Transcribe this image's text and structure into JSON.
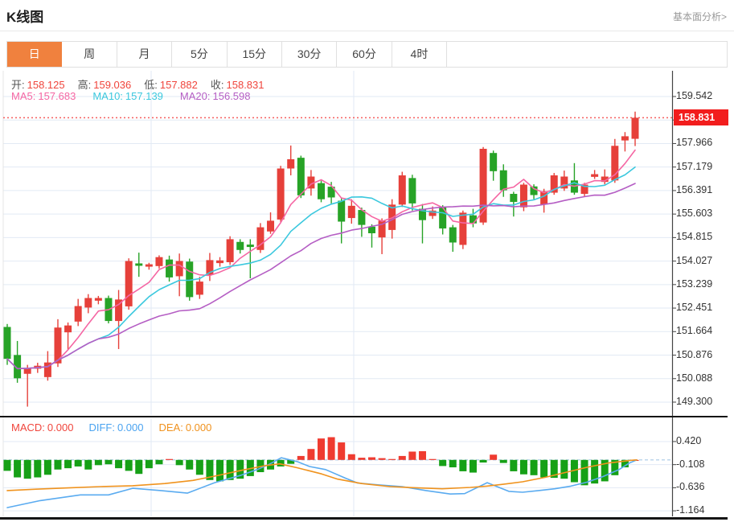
{
  "header": {
    "title": "K线图",
    "link": "基本面分析>"
  },
  "tabs": {
    "items": [
      "日",
      "周",
      "月",
      "5分",
      "15分",
      "30分",
      "60分",
      "4时"
    ],
    "active_index": 0
  },
  "ohlc": {
    "open_label": "开:",
    "open": "158.125",
    "high_label": "高:",
    "high": "159.036",
    "low_label": "低:",
    "low": "157.882",
    "close_label": "收:",
    "close": "158.831"
  },
  "ma": {
    "ma5_label": "MA5:",
    "ma5": "157.683",
    "ma10_label": "MA10:",
    "ma10": "157.139",
    "ma20_label": "MA20:",
    "ma20": "156.598"
  },
  "macd_header": {
    "macd_label": "MACD:",
    "macd": "0.000",
    "diff_label": "DIFF:",
    "diff": "0.000",
    "dea_label": "DEA:",
    "dea": "0.000"
  },
  "price_axis": {
    "current_price": "158.831"
  },
  "colors": {
    "up": "#e6403a",
    "down": "#27a327",
    "ma5": "#f566a3",
    "ma10": "#3bc8de",
    "ma20": "#b55ec4",
    "diff_line": "#5aabf0",
    "dea_line": "#f0931e",
    "grid": "#e2eaf4",
    "axis": "#444444",
    "price_line": "#f56060",
    "badge_bg": "#f21d1d",
    "active_tab": "#f0813e",
    "hist_up": "#ef3b30",
    "hist_down": "#16a016"
  },
  "chart_data": [
    {
      "type": "candlestick",
      "panel": "price",
      "interval_selected": "日",
      "legend": [
        "MA5",
        "MA10",
        "MA20"
      ],
      "ma_periods": [
        5,
        10,
        20
      ],
      "y_ticks": [
        159.542,
        157.966,
        157.179,
        156.391,
        155.603,
        154.815,
        154.027,
        153.239,
        152.451,
        151.664,
        150.876,
        150.088,
        149.3
      ],
      "y_tick_step": 0.7878,
      "ylim": [
        148.9,
        160.4
      ],
      "grid": true,
      "current_price": 158.831,
      "latest": {
        "open": 158.125,
        "high": 159.036,
        "low": 157.882,
        "close": 158.831,
        "ma5": 157.683,
        "ma10": 157.139,
        "ma20": 156.598
      },
      "candles_ohlc": [
        [
          151.82,
          151.92,
          150.55,
          150.75
        ],
        [
          150.88,
          151.35,
          149.95,
          150.1
        ],
        [
          150.25,
          150.55,
          149.15,
          150.45
        ],
        [
          150.42,
          150.62,
          150.28,
          150.52
        ],
        [
          150.14,
          151.01,
          150.02,
          150.63
        ],
        [
          150.6,
          152.08,
          150.48,
          151.8
        ],
        [
          151.64,
          151.97,
          151.05,
          151.87
        ],
        [
          152.0,
          152.76,
          151.85,
          152.52
        ],
        [
          152.47,
          152.92,
          152.28,
          152.79
        ],
        [
          152.7,
          152.86,
          152.58,
          152.79
        ],
        [
          152.79,
          152.87,
          151.94,
          152.02
        ],
        [
          152.02,
          153.06,
          151.08,
          152.74
        ],
        [
          152.51,
          154.12,
          152.4,
          154.03
        ],
        [
          153.95,
          154.31,
          153.5,
          153.87
        ],
        [
          153.84,
          153.97,
          153.74,
          153.92
        ],
        [
          153.86,
          154.22,
          153.78,
          154.16
        ],
        [
          154.08,
          154.21,
          153.34,
          153.48
        ],
        [
          153.52,
          154.28,
          152.85,
          154.03
        ],
        [
          154.01,
          154.11,
          152.7,
          152.82
        ],
        [
          152.9,
          153.5,
          152.76,
          153.34
        ],
        [
          153.57,
          154.3,
          153.36,
          154.06
        ],
        [
          153.96,
          154.16,
          153.84,
          154.05
        ],
        [
          153.99,
          154.86,
          153.9,
          154.76
        ],
        [
          154.67,
          154.76,
          154.28,
          154.4
        ],
        [
          154.58,
          154.76,
          153.45,
          154.5
        ],
        [
          154.4,
          155.3,
          154.3,
          155.16
        ],
        [
          155.02,
          155.66,
          154.94,
          155.38
        ],
        [
          155.42,
          157.22,
          155.34,
          157.13
        ],
        [
          157.13,
          157.9,
          156.9,
          157.44
        ],
        [
          157.49,
          157.56,
          156.14,
          156.23
        ],
        [
          156.46,
          157.08,
          156.22,
          156.86
        ],
        [
          156.64,
          156.72,
          156.0,
          156.1
        ],
        [
          156.52,
          156.68,
          155.96,
          156.16
        ],
        [
          156.05,
          156.16,
          154.62,
          155.35
        ],
        [
          155.47,
          156.1,
          155.28,
          155.88
        ],
        [
          155.74,
          155.82,
          154.84,
          155.24
        ],
        [
          155.18,
          155.26,
          154.48,
          154.96
        ],
        [
          154.82,
          155.46,
          154.26,
          155.38
        ],
        [
          155.07,
          156.1,
          154.78,
          155.92
        ],
        [
          155.92,
          157.02,
          155.84,
          156.9
        ],
        [
          156.81,
          156.92,
          155.72,
          155.96
        ],
        [
          155.78,
          155.94,
          154.62,
          155.4
        ],
        [
          155.54,
          155.86,
          155.44,
          155.72
        ],
        [
          155.83,
          155.9,
          154.92,
          155.12
        ],
        [
          155.16,
          155.24,
          154.34,
          154.65
        ],
        [
          154.57,
          155.72,
          154.43,
          155.65
        ],
        [
          155.56,
          155.78,
          155.16,
          155.29
        ],
        [
          155.32,
          157.85,
          155.24,
          157.79
        ],
        [
          157.65,
          157.73,
          156.72,
          157.04
        ],
        [
          157.07,
          157.27,
          156.18,
          156.4
        ],
        [
          156.28,
          156.35,
          155.52,
          156.01
        ],
        [
          155.83,
          156.65,
          155.7,
          156.59
        ],
        [
          156.53,
          156.6,
          156.1,
          156.24
        ],
        [
          155.92,
          156.45,
          155.65,
          156.37
        ],
        [
          156.32,
          156.98,
          156.25,
          156.9
        ],
        [
          156.46,
          157.06,
          156.38,
          156.86
        ],
        [
          156.73,
          157.31,
          156.25,
          156.32
        ],
        [
          156.28,
          156.65,
          156.2,
          156.59
        ],
        [
          156.85,
          157.08,
          156.78,
          156.94
        ],
        [
          156.68,
          157.1,
          156.6,
          156.86
        ],
        [
          156.73,
          158.12,
          156.65,
          157.89
        ],
        [
          158.07,
          158.35,
          157.7,
          158.21
        ],
        [
          158.125,
          159.036,
          157.882,
          158.831
        ]
      ]
    },
    {
      "type": "bar",
      "panel": "macd",
      "y_ticks": [
        0.42,
        -0.108,
        -0.636,
        -1.164
      ],
      "ylim": [
        -1.35,
        0.95
      ],
      "grid": true,
      "latest": {
        "macd": 0.0,
        "diff": 0.0,
        "dea": 0.0
      },
      "histogram": [
        -0.25,
        -0.4,
        -0.43,
        -0.4,
        -0.34,
        -0.22,
        -0.19,
        -0.15,
        -0.22,
        -0.12,
        -0.1,
        -0.19,
        -0.25,
        -0.32,
        -0.19,
        -0.1,
        0.02,
        -0.12,
        -0.22,
        -0.34,
        -0.46,
        -0.49,
        -0.46,
        -0.43,
        -0.37,
        -0.28,
        -0.22,
        -0.15,
        -0.09,
        0.09,
        0.25,
        0.49,
        0.52,
        0.4,
        0.13,
        0.05,
        0.06,
        0.04,
        0.02,
        0.09,
        0.19,
        0.2,
        0.02,
        -0.14,
        -0.17,
        -0.26,
        -0.29,
        -0.06,
        0.12,
        -0.07,
        -0.26,
        -0.33,
        -0.35,
        -0.4,
        -0.41,
        -0.43,
        -0.51,
        -0.58,
        -0.54,
        -0.49,
        -0.35,
        -0.17,
        0.0
      ],
      "diff_line": [
        [
          9,
          -1.09
        ],
        [
          50,
          -0.93
        ],
        [
          100,
          -0.8
        ],
        [
          135,
          -0.8
        ],
        [
          165,
          -0.65
        ],
        [
          200,
          -0.7
        ],
        [
          233,
          -0.76
        ],
        [
          267,
          -0.52
        ],
        [
          300,
          -0.35
        ],
        [
          320,
          -0.22
        ],
        [
          335,
          -0.1
        ],
        [
          350,
          0.05
        ],
        [
          370,
          -0.04
        ],
        [
          385,
          -0.15
        ],
        [
          405,
          -0.22
        ],
        [
          430,
          -0.42
        ],
        [
          445,
          -0.53
        ],
        [
          470,
          -0.57
        ],
        [
          500,
          -0.61
        ],
        [
          530,
          -0.7
        ],
        [
          560,
          -0.78
        ],
        [
          578,
          -0.77
        ],
        [
          606,
          -0.52
        ],
        [
          633,
          -0.72
        ],
        [
          650,
          -0.74
        ],
        [
          670,
          -0.7
        ],
        [
          690,
          -0.66
        ],
        [
          710,
          -0.6
        ],
        [
          730,
          -0.51
        ],
        [
          750,
          -0.38
        ],
        [
          770,
          -0.22
        ],
        [
          783,
          -0.07
        ],
        [
          792,
          0.0
        ]
      ],
      "dea_line": [
        [
          9,
          -0.7
        ],
        [
          45,
          -0.67
        ],
        [
          85,
          -0.64
        ],
        [
          125,
          -0.61
        ],
        [
          165,
          -0.59
        ],
        [
          205,
          -0.54
        ],
        [
          240,
          -0.47
        ],
        [
          270,
          -0.36
        ],
        [
          300,
          -0.24
        ],
        [
          330,
          -0.13
        ],
        [
          348,
          -0.09
        ],
        [
          370,
          -0.18
        ],
        [
          400,
          -0.32
        ],
        [
          420,
          -0.44
        ],
        [
          450,
          -0.54
        ],
        [
          485,
          -0.61
        ],
        [
          520,
          -0.64
        ],
        [
          550,
          -0.66
        ],
        [
          585,
          -0.63
        ],
        [
          605,
          -0.6
        ],
        [
          625,
          -0.56
        ],
        [
          650,
          -0.5
        ],
        [
          678,
          -0.4
        ],
        [
          705,
          -0.28
        ],
        [
          730,
          -0.17
        ],
        [
          757,
          -0.07
        ],
        [
          785,
          -0.01
        ],
        [
          792,
          0.0
        ]
      ]
    }
  ]
}
